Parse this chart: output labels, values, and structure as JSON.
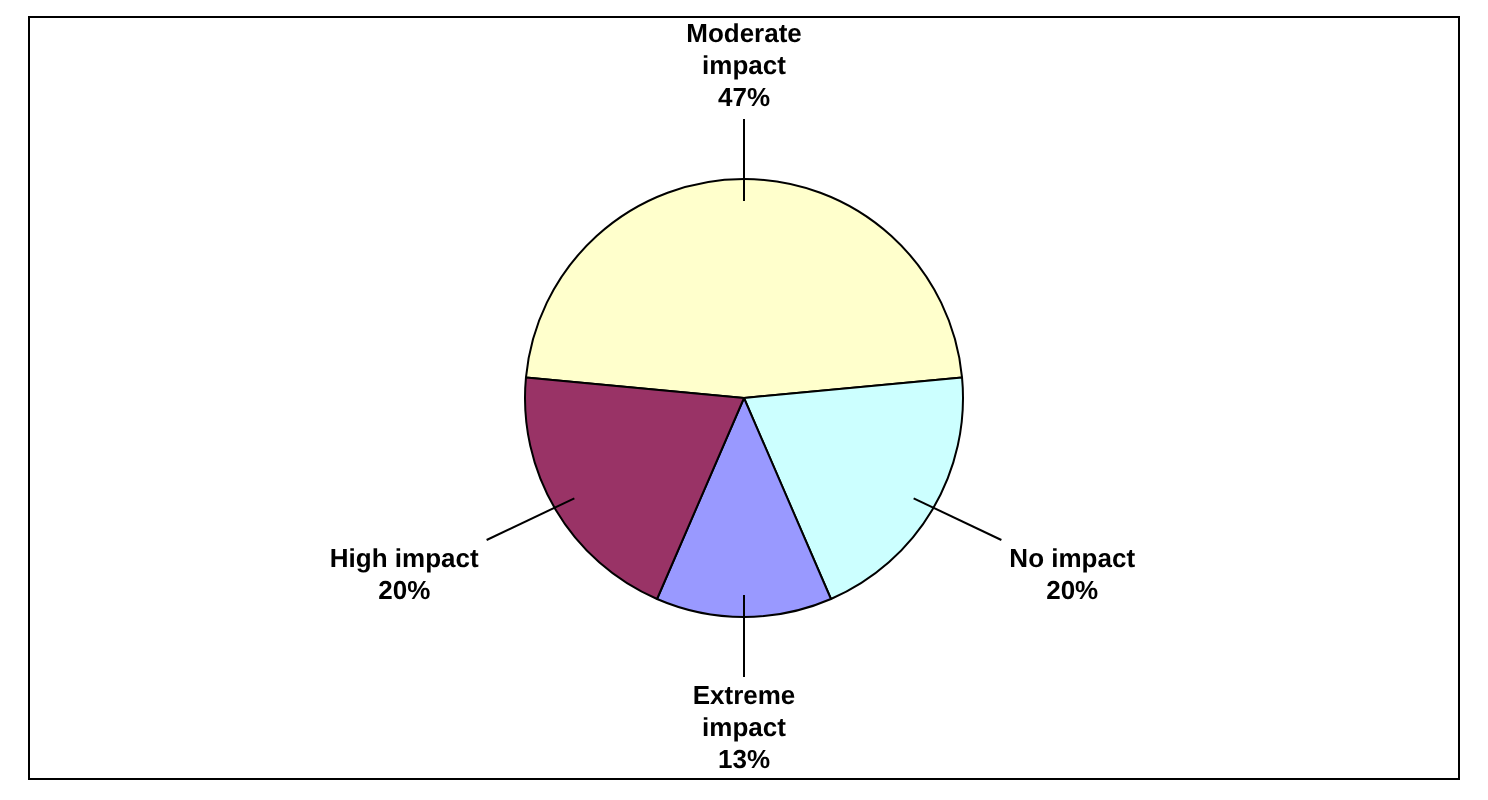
{
  "chart_data": {
    "type": "pie",
    "categories": [
      "Moderate impact",
      "No impact",
      "Extreme impact",
      "High impact"
    ],
    "values": [
      47,
      20,
      13,
      20
    ],
    "colors": [
      "#ffffcc",
      "#ccffff",
      "#9999ff",
      "#993366"
    ],
    "value_labels": [
      "47%",
      "20%",
      "13%",
      "20%"
    ],
    "legend": false
  }
}
